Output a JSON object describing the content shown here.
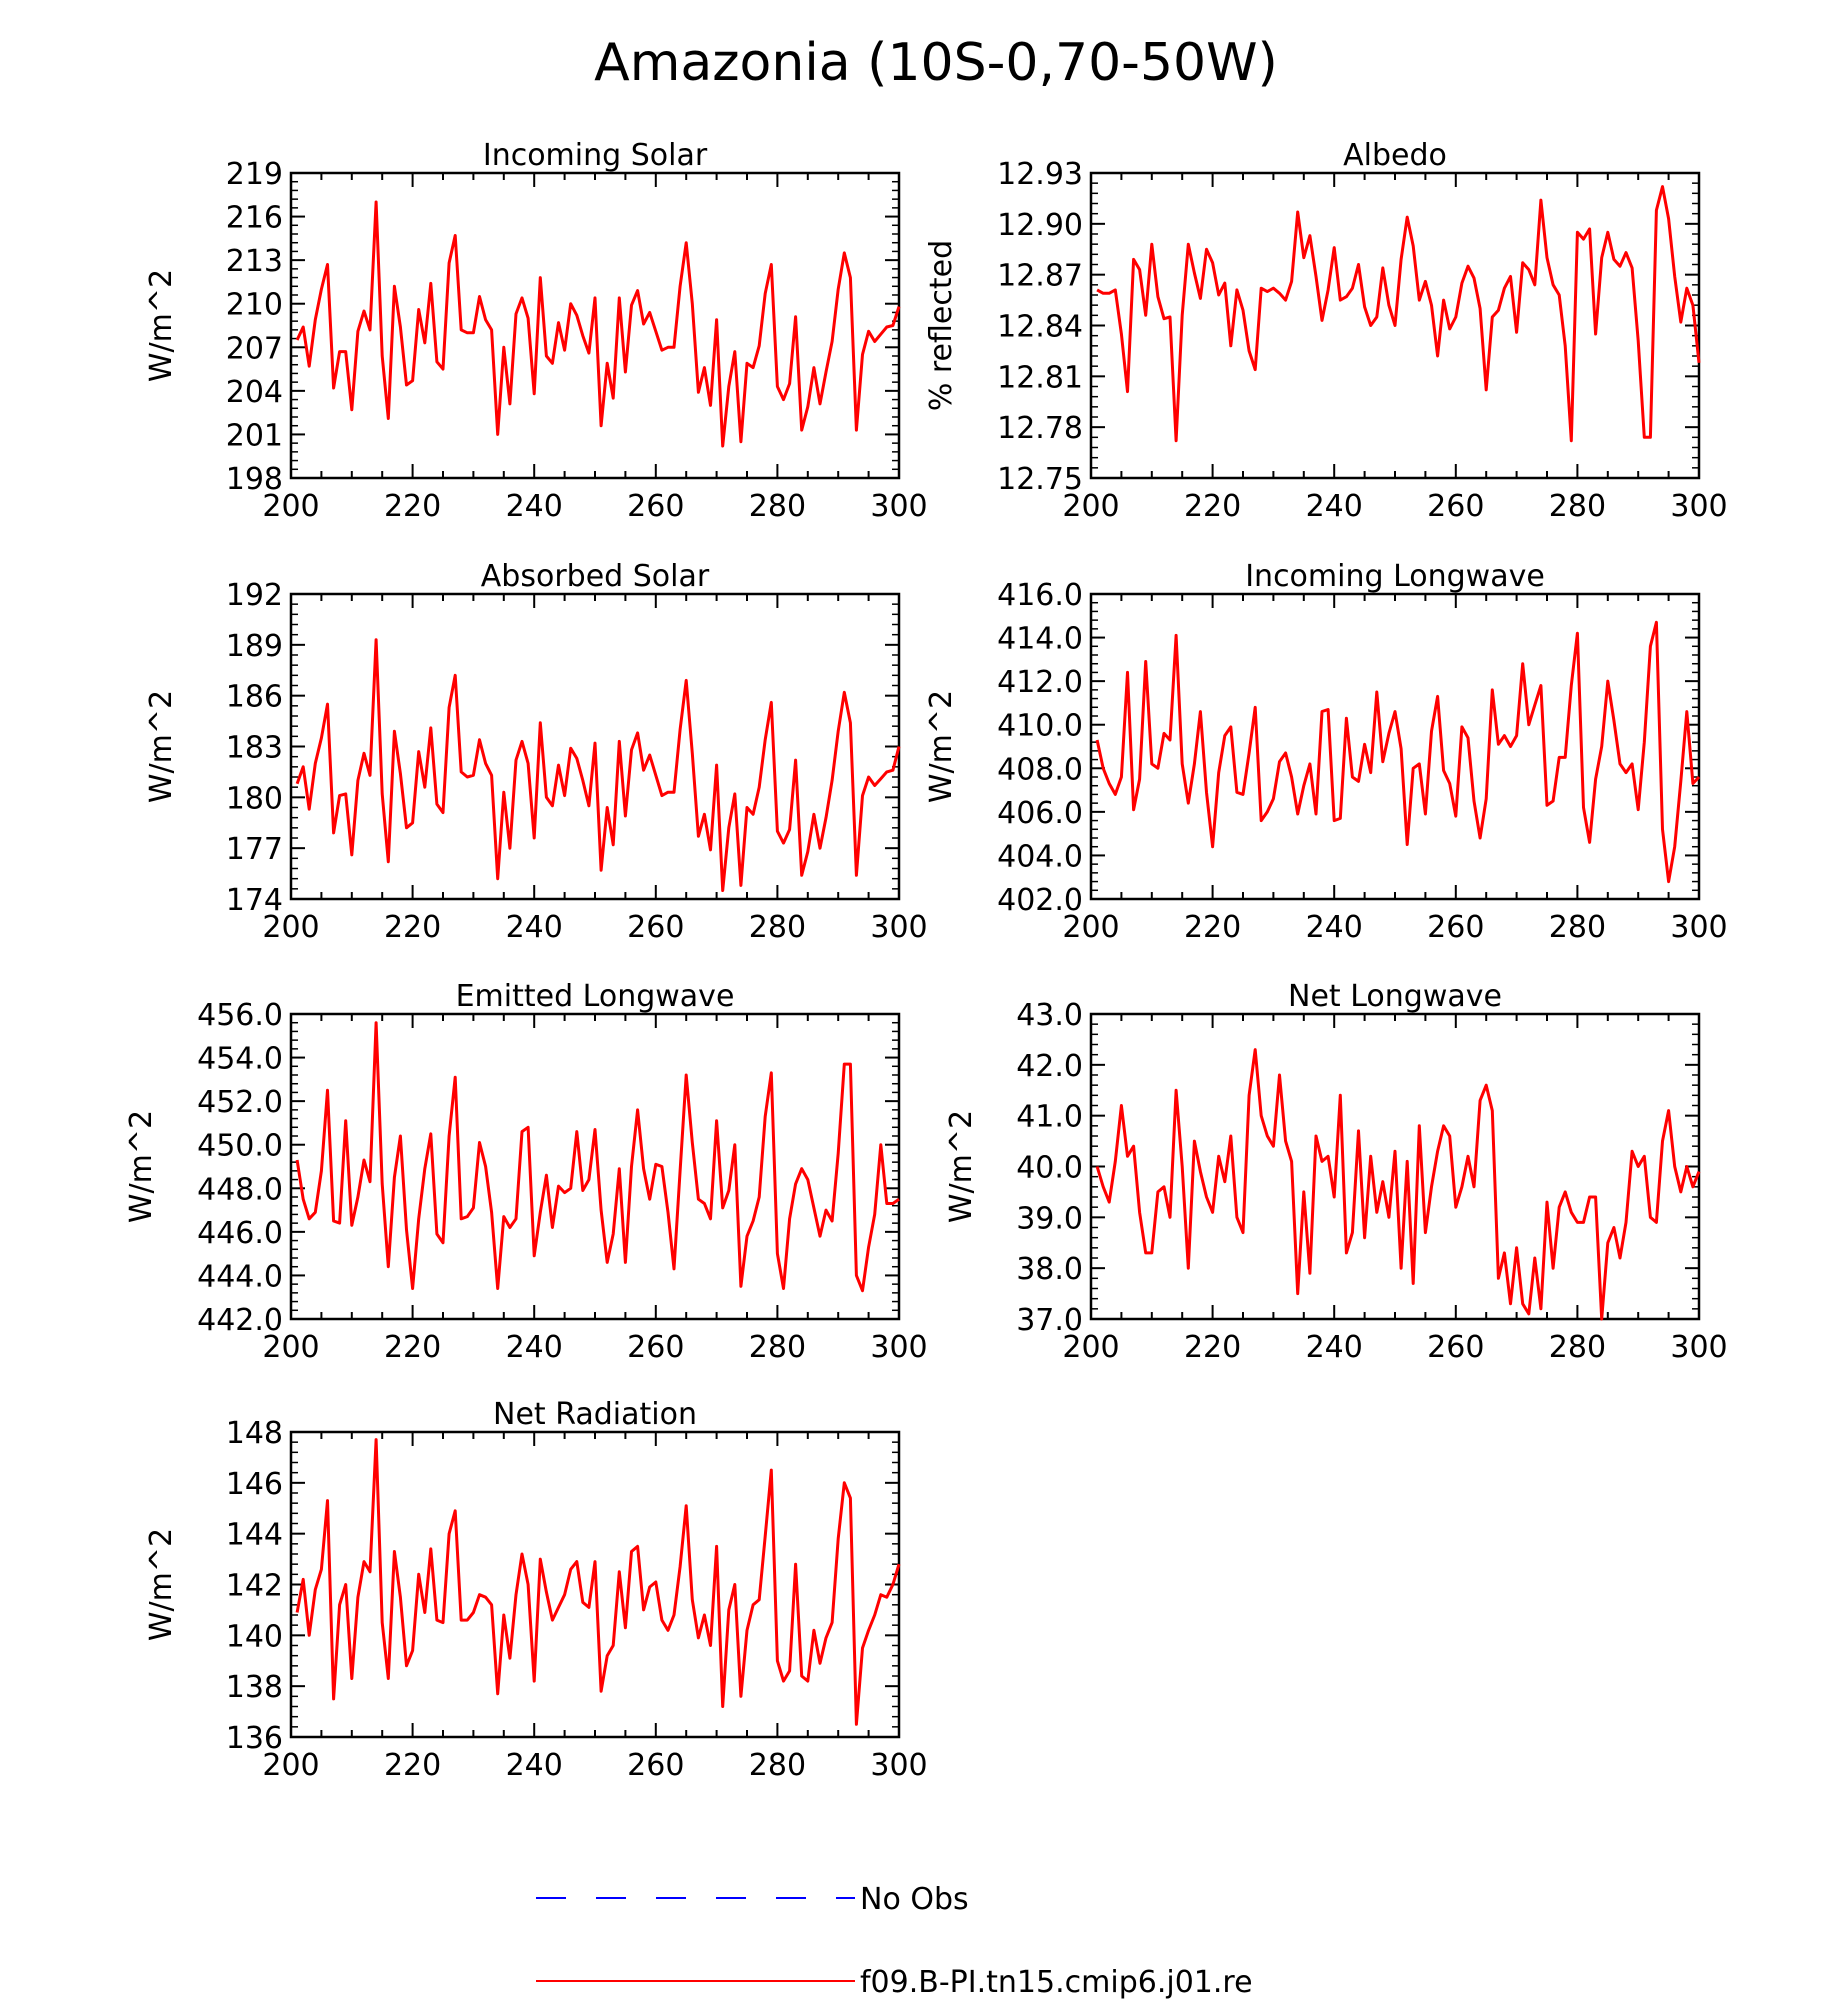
{
  "title": "Amazonia (10S-0,70-50W)",
  "colors": {
    "model": "#ff0000",
    "obs": "#0000ff",
    "axis": "#000000"
  },
  "legend": {
    "obs_label": "No Obs",
    "model_label": "f09.B-PI.tn15.cmip6.j01.re"
  },
  "chart_data": [
    {
      "type": "line",
      "title": "Incoming Solar",
      "ylabel": "W/m^2",
      "xlim": [
        200,
        300
      ],
      "ylim": [
        198,
        219
      ],
      "xticks": [
        "200",
        "220",
        "240",
        "260",
        "280",
        "300"
      ],
      "yticks": [
        "198",
        "201",
        "204",
        "207",
        "210",
        "213",
        "216",
        "219"
      ],
      "series": [
        {
          "name": "f09.B-PI.tn15.cmip6.j01.re",
          "x_start": 201,
          "values": [
            207.5,
            208.4,
            205.7,
            208.9,
            211.0,
            212.7,
            204.2,
            206.7,
            206.7,
            202.7,
            208.1,
            209.5,
            208.2,
            217.0,
            206.4,
            202.1,
            211.2,
            208.4,
            204.4,
            204.7,
            209.6,
            207.3,
            211.4,
            206.0,
            205.5,
            212.8,
            214.7,
            208.2,
            208.0,
            208.0,
            210.5,
            208.9,
            208.2,
            201.0,
            207.0,
            203.1,
            209.3,
            210.4,
            209.0,
            203.8,
            211.8,
            206.4,
            205.9,
            208.7,
            206.8,
            210.0,
            209.2,
            207.8,
            206.6,
            210.4,
            201.6,
            205.9,
            203.5,
            210.4,
            205.3,
            209.9,
            210.9,
            208.6,
            209.4,
            208.1,
            206.8,
            207.0,
            207.0,
            211.2,
            214.2,
            210.0,
            203.9,
            205.6,
            203.0,
            208.9,
            200.2,
            204.3,
            206.7,
            200.5,
            205.9,
            205.6,
            207.1,
            210.7,
            212.7,
            204.3,
            203.4,
            204.5,
            209.1,
            201.3,
            202.9,
            205.6,
            203.1,
            205.3,
            207.4,
            211.0,
            213.5,
            211.8,
            201.3,
            206.5,
            208.1,
            207.4,
            207.9,
            208.4,
            208.5,
            209.8
          ]
        }
      ]
    },
    {
      "type": "line",
      "title": "Albedo",
      "ylabel": "% reflected",
      "xlim": [
        200,
        300
      ],
      "ylim": [
        12.75,
        12.93
      ],
      "xticks": [
        "200",
        "220",
        "240",
        "260",
        "280",
        "300"
      ],
      "yticks": [
        "12.75",
        "12.78",
        "12.81",
        "12.84",
        "12.87",
        "12.90",
        "12.93"
      ],
      "series": [
        {
          "name": "f09.B-PI.tn15.cmip6.j01.re",
          "x_start": 201,
          "values": [
            12.861,
            12.859,
            12.859,
            12.861,
            12.835,
            12.801,
            12.879,
            12.873,
            12.846,
            12.888,
            12.857,
            12.844,
            12.845,
            12.772,
            12.846,
            12.888,
            12.871,
            12.856,
            12.885,
            12.877,
            12.858,
            12.865,
            12.828,
            12.861,
            12.849,
            12.825,
            12.814,
            12.862,
            12.86,
            12.862,
            12.859,
            12.855,
            12.866,
            12.907,
            12.88,
            12.893,
            12.869,
            12.843,
            12.861,
            12.886,
            12.855,
            12.857,
            12.862,
            12.876,
            12.851,
            12.84,
            12.845,
            12.874,
            12.852,
            12.84,
            12.879,
            12.904,
            12.887,
            12.855,
            12.866,
            12.852,
            12.822,
            12.855,
            12.838,
            12.845,
            12.865,
            12.875,
            12.868,
            12.85,
            12.802,
            12.845,
            12.849,
            12.862,
            12.869,
            12.836,
            12.877,
            12.873,
            12.864,
            12.914,
            12.88,
            12.864,
            12.858,
            12.828,
            12.772,
            12.895,
            12.891,
            12.897,
            12.835,
            12.88,
            12.895,
            12.879,
            12.875,
            12.883,
            12.874,
            12.831,
            12.774,
            12.774,
            12.908,
            12.922,
            12.903,
            12.869,
            12.842,
            12.862,
            12.852,
            12.818
          ]
        }
      ]
    },
    {
      "type": "line",
      "title": "Absorbed Solar",
      "ylabel": "W/m^2",
      "xlim": [
        200,
        300
      ],
      "ylim": [
        174,
        192
      ],
      "xticks": [
        "200",
        "220",
        "240",
        "260",
        "280",
        "300"
      ],
      "yticks": [
        "174",
        "177",
        "180",
        "183",
        "186",
        "189",
        "192"
      ],
      "series": [
        {
          "name": "f09.B-PI.tn15.cmip6.j01.re",
          "x_start": 201,
          "values": [
            180.8,
            181.8,
            179.3,
            182.0,
            183.5,
            185.5,
            177.9,
            180.1,
            180.2,
            176.6,
            181.0,
            182.6,
            181.3,
            189.3,
            180.2,
            176.2,
            183.9,
            181.4,
            178.2,
            178.5,
            182.7,
            180.6,
            184.1,
            179.6,
            179.1,
            185.3,
            187.2,
            181.5,
            181.2,
            181.3,
            183.4,
            182.0,
            181.3,
            175.2,
            180.3,
            177.0,
            182.2,
            183.3,
            182.0,
            177.6,
            184.4,
            180.0,
            179.5,
            181.9,
            180.1,
            182.9,
            182.3,
            181.0,
            179.5,
            183.2,
            175.7,
            179.4,
            177.2,
            183.3,
            178.9,
            182.8,
            183.8,
            181.6,
            182.5,
            181.3,
            180.1,
            180.3,
            180.3,
            184.0,
            186.9,
            182.6,
            177.7,
            179.0,
            176.9,
            181.9,
            174.5,
            178.2,
            180.2,
            174.8,
            179.4,
            179.0,
            180.6,
            183.4,
            185.6,
            178.0,
            177.3,
            178.1,
            182.2,
            175.4,
            176.8,
            179.0,
            177.0,
            178.8,
            181.0,
            183.9,
            186.2,
            184.4,
            175.4,
            180.1,
            181.2,
            180.7,
            181.1,
            181.5,
            181.6,
            183.0
          ]
        }
      ]
    },
    {
      "type": "line",
      "title": "Incoming Longwave",
      "ylabel": "W/m^2",
      "xlim": [
        200,
        300
      ],
      "ylim": [
        402,
        416
      ],
      "xticks": [
        "200",
        "220",
        "240",
        "260",
        "280",
        "300"
      ],
      "yticks": [
        "402.0",
        "404.0",
        "406.0",
        "408.0",
        "410.0",
        "412.0",
        "414.0",
        "416.0"
      ],
      "series": [
        {
          "name": "f09.B-PI.tn15.cmip6.j01.re",
          "x_start": 201,
          "values": [
            409.3,
            408.0,
            407.3,
            406.8,
            407.6,
            412.4,
            406.1,
            407.5,
            412.9,
            408.2,
            408.0,
            409.6,
            409.3,
            414.1,
            408.2,
            406.4,
            408.2,
            410.6,
            406.9,
            404.4,
            407.8,
            409.5,
            409.9,
            406.9,
            406.8,
            408.7,
            410.8,
            405.6,
            406.0,
            406.6,
            408.3,
            408.7,
            407.6,
            405.9,
            407.2,
            408.2,
            405.9,
            410.6,
            410.7,
            405.6,
            405.7,
            410.3,
            407.6,
            407.4,
            409.1,
            407.8,
            411.5,
            408.3,
            409.6,
            410.6,
            408.9,
            404.5,
            408.0,
            408.2,
            405.9,
            409.7,
            411.3,
            407.9,
            407.3,
            405.8,
            409.9,
            409.4,
            406.5,
            404.8,
            406.6,
            411.6,
            409.1,
            409.5,
            409.0,
            409.5,
            412.8,
            410.0,
            410.9,
            411.8,
            406.3,
            406.5,
            408.5,
            408.5,
            411.8,
            414.2,
            406.2,
            404.6,
            407.5,
            409.0,
            412.0,
            410.2,
            408.2,
            407.8,
            408.2,
            406.1,
            409.2,
            413.6,
            414.7,
            405.2,
            402.8,
            404.4,
            407.4,
            410.6,
            407.3,
            407.6
          ]
        }
      ]
    },
    {
      "type": "line",
      "title": "Emitted Longwave",
      "ylabel": "W/m^2",
      "xlim": [
        200,
        300
      ],
      "ylim": [
        442,
        456
      ],
      "xticks": [
        "200",
        "220",
        "240",
        "260",
        "280",
        "300"
      ],
      "yticks": [
        "442.0",
        "444.0",
        "446.0",
        "448.0",
        "450.0",
        "452.0",
        "454.0",
        "456.0"
      ],
      "series": [
        {
          "name": "f09.B-PI.tn15.cmip6.j01.re",
          "x_start": 201,
          "values": [
            449.3,
            447.5,
            446.6,
            446.9,
            448.8,
            452.5,
            446.5,
            446.4,
            451.1,
            446.3,
            447.6,
            449.3,
            448.3,
            455.6,
            448.2,
            444.4,
            448.5,
            450.4,
            446.1,
            443.4,
            446.6,
            448.9,
            450.5,
            445.9,
            445.5,
            450.4,
            453.1,
            446.6,
            446.7,
            447.1,
            450.1,
            449.0,
            446.9,
            443.4,
            446.7,
            446.2,
            446.6,
            450.6,
            450.8,
            444.9,
            446.9,
            448.6,
            446.2,
            448.1,
            447.8,
            448.0,
            450.6,
            447.9,
            448.4,
            450.7,
            447.0,
            444.6,
            445.9,
            448.9,
            444.6,
            449.0,
            451.6,
            448.9,
            447.5,
            449.1,
            449.0,
            446.9,
            444.3,
            448.8,
            453.2,
            450.1,
            447.5,
            447.3,
            446.6,
            451.1,
            447.1,
            447.9,
            450.0,
            443.5,
            445.8,
            446.5,
            447.6,
            451.3,
            453.3,
            445.0,
            443.4,
            446.6,
            448.2,
            448.9,
            448.4,
            447.1,
            445.8,
            447.0,
            446.5,
            449.6,
            453.7,
            453.7,
            444.0,
            443.3,
            445.3,
            446.8,
            450.0,
            447.3,
            447.3,
            447.5
          ]
        }
      ]
    },
    {
      "type": "line",
      "title": "Net Longwave",
      "ylabel": "W/m^2",
      "xlim": [
        200,
        300
      ],
      "ylim": [
        37,
        43
      ],
      "xticks": [
        "200",
        "220",
        "240",
        "260",
        "280",
        "300"
      ],
      "yticks": [
        "37.0",
        "38.0",
        "39.0",
        "40.0",
        "41.0",
        "42.0",
        "43.0"
      ],
      "series": [
        {
          "name": "f09.B-PI.tn15.cmip6.j01.re",
          "x_start": 201,
          "values": [
            40.0,
            39.6,
            39.3,
            40.1,
            41.2,
            40.2,
            40.4,
            39.1,
            38.3,
            38.3,
            39.5,
            39.6,
            39.0,
            41.5,
            40.0,
            38.0,
            40.5,
            39.9,
            39.4,
            39.1,
            40.2,
            39.7,
            40.6,
            39.0,
            38.7,
            41.4,
            42.3,
            41.0,
            40.6,
            40.4,
            41.8,
            40.5,
            40.1,
            37.5,
            39.5,
            37.9,
            40.6,
            40.1,
            40.2,
            39.4,
            41.4,
            38.3,
            38.7,
            40.7,
            38.6,
            40.2,
            39.1,
            39.7,
            39.0,
            40.3,
            38.0,
            40.1,
            37.7,
            40.8,
            38.7,
            39.6,
            40.3,
            40.8,
            40.6,
            39.2,
            39.6,
            40.2,
            39.6,
            41.3,
            41.6,
            41.1,
            37.8,
            38.3,
            37.3,
            38.4,
            37.3,
            37.1,
            38.2,
            37.2,
            39.3,
            38.0,
            39.2,
            39.5,
            39.1,
            38.9,
            38.9,
            39.4,
            39.4,
            37.0,
            38.5,
            38.8,
            38.2,
            38.9,
            40.3,
            40.0,
            40.2,
            39.0,
            38.9,
            40.5,
            41.1,
            40.0,
            39.5,
            40.0,
            39.6,
            39.9
          ]
        }
      ]
    },
    {
      "type": "line",
      "title": "Net Radiation",
      "ylabel": "W/m^2",
      "xlim": [
        200,
        300
      ],
      "ylim": [
        136,
        148
      ],
      "xticks": [
        "200",
        "220",
        "240",
        "260",
        "280",
        "300"
      ],
      "yticks": [
        "136",
        "138",
        "140",
        "142",
        "144",
        "146",
        "148"
      ],
      "series": [
        {
          "name": "f09.B-PI.tn15.cmip6.j01.re",
          "x_start": 201,
          "values": [
            140.9,
            142.2,
            140.0,
            141.8,
            142.6,
            145.3,
            137.5,
            141.2,
            142.0,
            138.3,
            141.5,
            142.9,
            142.5,
            147.7,
            140.5,
            138.3,
            143.3,
            141.5,
            138.8,
            139.4,
            142.4,
            140.9,
            143.4,
            140.6,
            140.5,
            144.0,
            144.9,
            140.6,
            140.6,
            140.9,
            141.6,
            141.5,
            141.2,
            137.7,
            140.8,
            139.1,
            141.6,
            143.2,
            142.0,
            138.2,
            143.0,
            141.7,
            140.6,
            141.1,
            141.6,
            142.6,
            142.9,
            141.3,
            141.1,
            142.9,
            137.8,
            139.2,
            139.6,
            142.5,
            140.3,
            143.3,
            143.5,
            141.0,
            141.9,
            142.1,
            140.6,
            140.2,
            140.8,
            142.7,
            145.1,
            141.4,
            139.9,
            140.8,
            139.6,
            143.5,
            137.2,
            141.0,
            142.0,
            137.6,
            140.2,
            141.2,
            141.4,
            143.9,
            146.5,
            139.0,
            138.2,
            138.6,
            142.8,
            138.4,
            138.2,
            140.2,
            138.9,
            139.9,
            140.5,
            143.8,
            146.0,
            145.4,
            136.5,
            139.5,
            140.2,
            140.8,
            141.6,
            141.5,
            142.0,
            142.8
          ]
        }
      ]
    }
  ]
}
